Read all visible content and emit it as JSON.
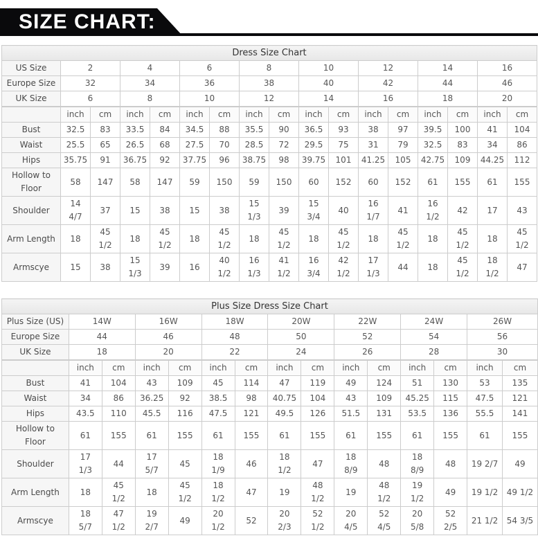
{
  "header": {
    "title": "SIZE CHART:"
  },
  "colors": {
    "banner_bg": "#0a0a0c",
    "banner_text": "#ffffff",
    "border": "#cccccc",
    "label_bg": "#f6f6f6",
    "title_bg_top": "#f4f4f4",
    "title_bg_bottom": "#e7e7e7",
    "cell_text": "#555555"
  },
  "tables": [
    {
      "title": "Dress Size Chart",
      "unit_labels": [
        "inch",
        "cm"
      ],
      "size_rows": [
        {
          "label": "US Size",
          "values": [
            "2",
            "4",
            "6",
            "8",
            "10",
            "12",
            "14",
            "16"
          ]
        },
        {
          "label": "Europe Size",
          "values": [
            "32",
            "34",
            "36",
            "38",
            "40",
            "42",
            "44",
            "46"
          ]
        },
        {
          "label": "UK Size",
          "values": [
            "6",
            "8",
            "10",
            "12",
            "14",
            "16",
            "18",
            "20"
          ]
        }
      ],
      "measure_rows": [
        {
          "label": "Bust",
          "values": [
            "32.5",
            "83",
            "33.5",
            "84",
            "34.5",
            "88",
            "35.5",
            "90",
            "36.5",
            "93",
            "38",
            "97",
            "39.5",
            "100",
            "41",
            "104"
          ]
        },
        {
          "label": "Waist",
          "values": [
            "25.5",
            "65",
            "26.5",
            "68",
            "27.5",
            "70",
            "28.5",
            "72",
            "29.5",
            "75",
            "31",
            "79",
            "32.5",
            "83",
            "34",
            "86"
          ]
        },
        {
          "label": "Hips",
          "values": [
            "35.75",
            "91",
            "36.75",
            "92",
            "37.75",
            "96",
            "38.75",
            "98",
            "39.75",
            "101",
            "41.25",
            "105",
            "42.75",
            "109",
            "44.25",
            "112"
          ]
        },
        {
          "label": "Hollow to\nFloor",
          "values": [
            "58",
            "147",
            "58",
            "147",
            "59",
            "150",
            "59",
            "150",
            "60",
            "152",
            "60",
            "152",
            "61",
            "155",
            "61",
            "155"
          ]
        },
        {
          "label": "Shoulder",
          "values": [
            "14\n4/7",
            "37",
            "15",
            "38",
            "15",
            "38",
            "15\n1/3",
            "39",
            "15\n3/4",
            "40",
            "16\n1/7",
            "41",
            "16\n1/2",
            "42",
            "17",
            "43"
          ]
        },
        {
          "label": "Arm Length",
          "values": [
            "18",
            "45\n1/2",
            "18",
            "45\n1/2",
            "18",
            "45\n1/2",
            "18",
            "45\n1/2",
            "18",
            "45\n1/2",
            "18",
            "45\n1/2",
            "18",
            "45\n1/2",
            "18",
            "45\n1/2"
          ]
        },
        {
          "label": "Armscye",
          "values": [
            "15",
            "38",
            "15\n1/3",
            "39",
            "16",
            "40\n1/2",
            "16\n1/3",
            "41\n1/2",
            "16\n3/4",
            "42\n1/2",
            "17\n1/3",
            "44",
            "18",
            "45\n1/2",
            "18\n1/2",
            "47"
          ]
        }
      ]
    },
    {
      "title": "Plus Size Dress Size Chart",
      "unit_labels": [
        "inch",
        "cm"
      ],
      "size_rows": [
        {
          "label": "Plus Size (US)",
          "values": [
            "14W",
            "16W",
            "18W",
            "20W",
            "22W",
            "24W",
            "26W"
          ]
        },
        {
          "label": "Europe Size",
          "values": [
            "44",
            "46",
            "48",
            "50",
            "52",
            "54",
            "56"
          ]
        },
        {
          "label": "UK Size",
          "values": [
            "18",
            "20",
            "22",
            "24",
            "26",
            "28",
            "30"
          ]
        }
      ],
      "measure_rows": [
        {
          "label": "Bust",
          "values": [
            "41",
            "104",
            "43",
            "109",
            "45",
            "114",
            "47",
            "119",
            "49",
            "124",
            "51",
            "130",
            "53",
            "135"
          ]
        },
        {
          "label": "Waist",
          "values": [
            "34",
            "86",
            "36.25",
            "92",
            "38.5",
            "98",
            "40.75",
            "104",
            "43",
            "109",
            "45.25",
            "115",
            "47.5",
            "121"
          ]
        },
        {
          "label": "Hips",
          "values": [
            "43.5",
            "110",
            "45.5",
            "116",
            "47.5",
            "121",
            "49.5",
            "126",
            "51.5",
            "131",
            "53.5",
            "136",
            "55.5",
            "141"
          ]
        },
        {
          "label": "Hollow to\nFloor",
          "values": [
            "61",
            "155",
            "61",
            "155",
            "61",
            "155",
            "61",
            "155",
            "61",
            "155",
            "61",
            "155",
            "61",
            "155"
          ]
        },
        {
          "label": "Shoulder",
          "values": [
            "17\n1/3",
            "44",
            "17\n5/7",
            "45",
            "18\n1/9",
            "46",
            "18\n1/2",
            "47",
            "18\n8/9",
            "48",
            "18\n8/9",
            "48",
            "19 2/7",
            "49"
          ]
        },
        {
          "label": "Arm Length",
          "values": [
            "18",
            "45\n1/2",
            "18",
            "45\n1/2",
            "18\n1/2",
            "47",
            "19",
            "48\n1/2",
            "19",
            "48\n1/2",
            "19\n1/2",
            "49",
            "19 1/2",
            "49 1/2"
          ]
        },
        {
          "label": "Armscye",
          "values": [
            "18\n5/7",
            "47\n1/2",
            "19\n2/7",
            "49",
            "20\n1/2",
            "52",
            "20\n2/3",
            "52\n1/2",
            "20\n4/5",
            "52\n4/5",
            "20\n5/8",
            "52\n2/5",
            "21 1/2",
            "54 3/5"
          ]
        }
      ]
    }
  ]
}
